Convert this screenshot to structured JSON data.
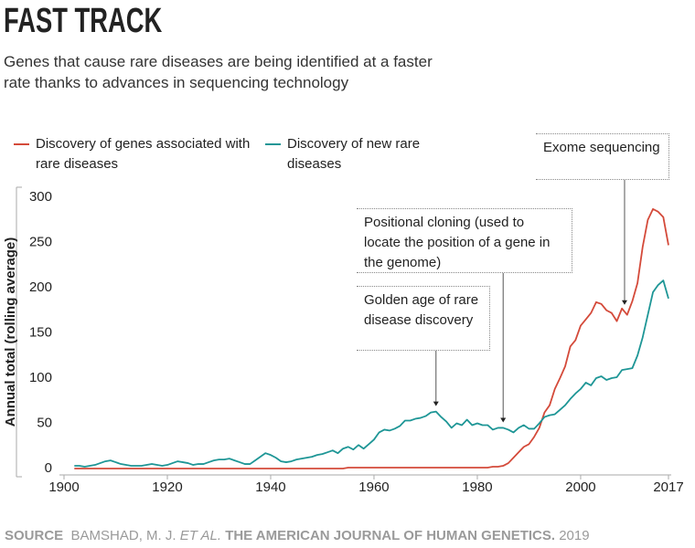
{
  "title": "FAST TRACK",
  "subtitle": "Genes that cause rare diseases are being identified at a faster rate thanks to advances in sequencing technology",
  "source": {
    "label": "SOURCE",
    "authors": "BAMSHAD, M. J.",
    "etal": "ET AL.",
    "journal": "THE AMERICAN JOURNAL OF HUMAN GENETICS.",
    "year": "2019"
  },
  "chart_data": {
    "type": "line",
    "y_label": "Annual total (rolling average)",
    "xlim": [
      1900,
      2017
    ],
    "xticks": [
      1900,
      1920,
      1940,
      1960,
      1980,
      2000,
      2017
    ],
    "ylim": [
      0,
      300
    ],
    "yticks": [
      0,
      50,
      100,
      150,
      200,
      250,
      300
    ],
    "grid": false,
    "x": [
      1902,
      1903,
      1904,
      1905,
      1906,
      1907,
      1908,
      1909,
      1910,
      1911,
      1912,
      1913,
      1914,
      1915,
      1916,
      1917,
      1918,
      1919,
      1920,
      1921,
      1922,
      1923,
      1924,
      1925,
      1926,
      1927,
      1928,
      1929,
      1930,
      1931,
      1932,
      1933,
      1934,
      1935,
      1936,
      1937,
      1938,
      1939,
      1940,
      1941,
      1942,
      1943,
      1944,
      1945,
      1946,
      1947,
      1948,
      1949,
      1950,
      1951,
      1952,
      1953,
      1954,
      1955,
      1956,
      1957,
      1958,
      1959,
      1960,
      1961,
      1962,
      1963,
      1964,
      1965,
      1966,
      1967,
      1968,
      1969,
      1970,
      1971,
      1972,
      1973,
      1974,
      1975,
      1976,
      1977,
      1978,
      1979,
      1980,
      1981,
      1982,
      1983,
      1984,
      1985,
      1986,
      1987,
      1988,
      1989,
      1990,
      1991,
      1992,
      1993,
      1994,
      1995,
      1996,
      1997,
      1998,
      1999,
      2000,
      2001,
      2002,
      2003,
      2004,
      2005,
      2006,
      2007,
      2008,
      2009,
      2010,
      2011,
      2012,
      2013,
      2014,
      2015,
      2016,
      2017
    ],
    "series": [
      {
        "name": "Discovery of genes associated with rare diseases",
        "color": "#d44a3a",
        "values": [
          0,
          0,
          0,
          0,
          0,
          0,
          0,
          0,
          0,
          0,
          0,
          0,
          0,
          0,
          0,
          0,
          0,
          0,
          0,
          0,
          0,
          0,
          0,
          0,
          0,
          0,
          0,
          0,
          0,
          0,
          0,
          0,
          0,
          0,
          0,
          0,
          0,
          0,
          0,
          0,
          0,
          0,
          0,
          0,
          0,
          0,
          0,
          0,
          0,
          0,
          0,
          0,
          0,
          1,
          1,
          1,
          1,
          1,
          1,
          1,
          1,
          1,
          1,
          1,
          1,
          1,
          1,
          1,
          1,
          1,
          1,
          1,
          1,
          1,
          1,
          1,
          1,
          1,
          1,
          1,
          1,
          2,
          2,
          3,
          6,
          12,
          18,
          24,
          27,
          35,
          45,
          62,
          70,
          88,
          100,
          113,
          135,
          142,
          158,
          165,
          172,
          184,
          182,
          175,
          172,
          163,
          177,
          170,
          185,
          205,
          245,
          275,
          287,
          284,
          278,
          247
        ]
      },
      {
        "name": "Discovery of new rare diseases",
        "color": "#1e9696",
        "values": [
          3,
          3,
          2,
          3,
          4,
          6,
          8,
          9,
          7,
          5,
          4,
          3,
          3,
          3,
          4,
          5,
          4,
          3,
          4,
          6,
          8,
          7,
          6,
          4,
          5,
          5,
          7,
          9,
          10,
          10,
          11,
          9,
          7,
          5,
          5,
          9,
          13,
          17,
          15,
          12,
          8,
          7,
          8,
          10,
          11,
          12,
          13,
          15,
          16,
          18,
          20,
          17,
          22,
          24,
          21,
          26,
          22,
          27,
          32,
          40,
          43,
          42,
          44,
          47,
          53,
          53,
          55,
          56,
          58,
          62,
          63,
          57,
          52,
          45,
          50,
          48,
          54,
          48,
          50,
          48,
          48,
          43,
          45,
          45,
          43,
          40,
          45,
          48,
          44,
          44,
          50,
          57,
          59,
          60,
          65,
          70,
          77,
          83,
          88,
          95,
          92,
          100,
          102,
          98,
          100,
          101,
          109,
          110,
          111,
          125,
          145,
          170,
          195,
          203,
          208,
          188
        ]
      }
    ],
    "annotations": [
      {
        "text": "Golden age of rare disease discovery",
        "x": 1972,
        "y": 63
      },
      {
        "text": "Positional cloning (used to locate the position of a gene in the genome)",
        "x": 1985,
        "y": 45
      },
      {
        "text": "Exome sequencing",
        "x": 2008.5,
        "y": 175
      }
    ]
  }
}
